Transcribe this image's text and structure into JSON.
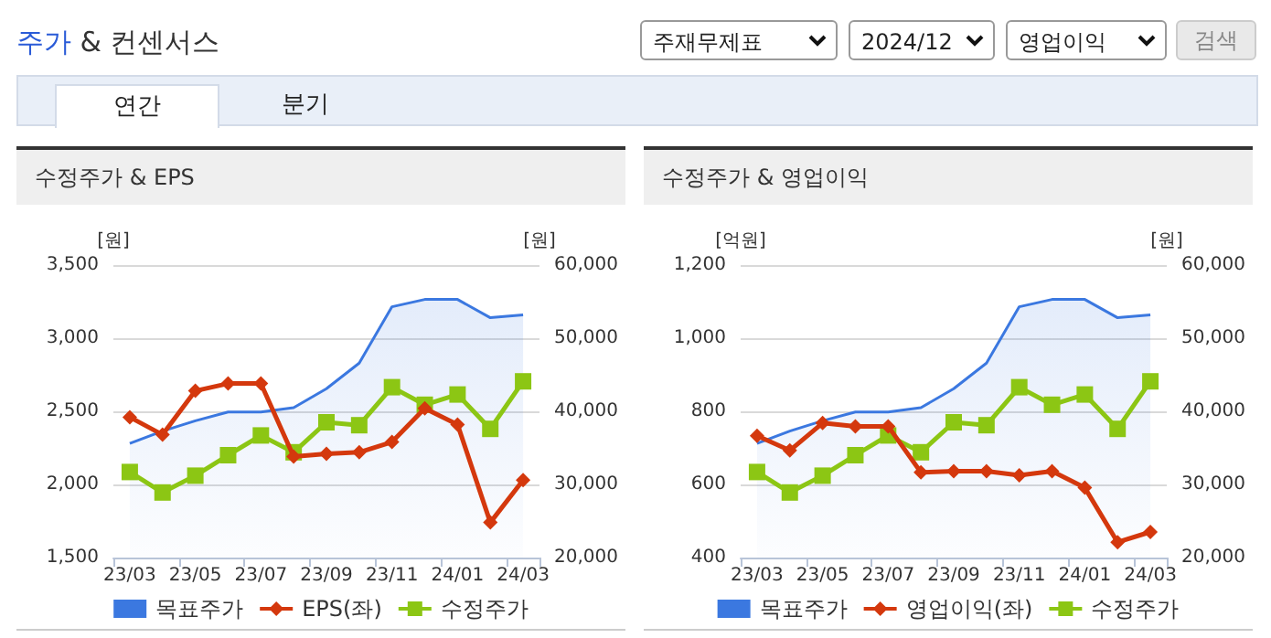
{
  "chart_data": [
    {
      "type": "other",
      "title": "주가 & 컨센서스",
      "annotations": [
        "주재무제표",
        "2024/12",
        "영업이익",
        "검색",
        "연간",
        "분기"
      ]
    },
    {
      "type": "line",
      "title": "수정주가 & EPS",
      "ylabel": "[원]",
      "y2label": "[원]",
      "categories": [
        "23/03",
        null,
        "23/05",
        null,
        "23/07",
        null,
        "23/09",
        null,
        "23/11",
        null,
        "24/01",
        null,
        "24/03"
      ],
      "series": [
        {
          "name": "목표주가",
          "type": "area",
          "axis": "y2",
          "color": "#3b78e0",
          "marker": "none",
          "values": [
            35600,
            37300,
            38700,
            39900,
            39900,
            40500,
            43100,
            46600,
            54300,
            55300,
            55300,
            52800,
            53200
          ]
        },
        {
          "name": "EPS(좌)",
          "type": "line",
          "color": "#d4380d",
          "marker": "diamond",
          "values": [
            2460,
            2340,
            2640,
            2690,
            2690,
            2190,
            2210,
            2220,
            2290,
            2520,
            2410,
            1740,
            2030
          ]
        },
        {
          "name": "수정주가",
          "type": "line",
          "axis": "y2",
          "color": "#8cc614",
          "marker": "square",
          "values": [
            31700,
            28900,
            31200,
            34000,
            36700,
            34400,
            38500,
            38100,
            43300,
            40900,
            42300,
            37600,
            44100
          ]
        }
      ],
      "ylim": [
        1500,
        3500
      ],
      "yticks": [
        {
          "value": 1500,
          "label": "1,500"
        },
        {
          "value": 2000,
          "label": "2,000"
        },
        {
          "value": 2500,
          "label": "2,500"
        },
        {
          "value": 3000,
          "label": "3,000"
        },
        {
          "value": 3500,
          "label": "3,500"
        }
      ],
      "y2lim": [
        20000,
        60000
      ],
      "y2ticks": [
        {
          "value": 20000,
          "label": "20,000"
        },
        {
          "value": 30000,
          "label": "30,000"
        },
        {
          "value": 40000,
          "label": "40,000"
        },
        {
          "value": 50000,
          "label": "50,000"
        },
        {
          "value": 60000,
          "label": "60,000"
        }
      ],
      "grid": "y",
      "legend": "bottom"
    },
    {
      "type": "line",
      "title": "수정주가 & 영업이익",
      "ylabel": "[억원]",
      "y2label": "[원]",
      "categories": [
        "23/03",
        null,
        "23/05",
        null,
        "23/07",
        null,
        "23/09",
        null,
        "23/11",
        null,
        "24/01",
        null,
        "24/03"
      ],
      "series": [
        {
          "name": "목표주가",
          "type": "area",
          "axis": "y2",
          "color": "#3b78e0",
          "marker": "none",
          "values": [
            35600,
            37300,
            38700,
            39900,
            39900,
            40500,
            43100,
            46600,
            54300,
            55300,
            55300,
            52800,
            53200
          ]
        },
        {
          "name": "영업이익(좌)",
          "type": "line",
          "color": "#d4380d",
          "marker": "diamond",
          "values": [
            733,
            693,
            768,
            759,
            759,
            633,
            636,
            636,
            625,
            636,
            591,
            442,
            470
          ]
        },
        {
          "name": "수정주가",
          "type": "line",
          "axis": "y2",
          "color": "#8cc614",
          "marker": "square",
          "values": [
            31700,
            28900,
            31200,
            34000,
            36700,
            34400,
            38500,
            38100,
            43300,
            40900,
            42300,
            37600,
            44100
          ]
        }
      ],
      "ylim": [
        400,
        1200
      ],
      "yticks": [
        {
          "value": 400,
          "label": "400"
        },
        {
          "value": 600,
          "label": "600"
        },
        {
          "value": 800,
          "label": "800"
        },
        {
          "value": 1000,
          "label": "1,000"
        },
        {
          "value": 1200,
          "label": "1,200"
        }
      ],
      "y2lim": [
        20000,
        60000
      ],
      "y2ticks": [
        {
          "value": 20000,
          "label": "20,000"
        },
        {
          "value": 30000,
          "label": "30,000"
        },
        {
          "value": 40000,
          "label": "40,000"
        },
        {
          "value": 50000,
          "label": "50,000"
        },
        {
          "value": 60000,
          "label": "60,000"
        }
      ],
      "grid": "y",
      "legend": "bottom"
    }
  ]
}
